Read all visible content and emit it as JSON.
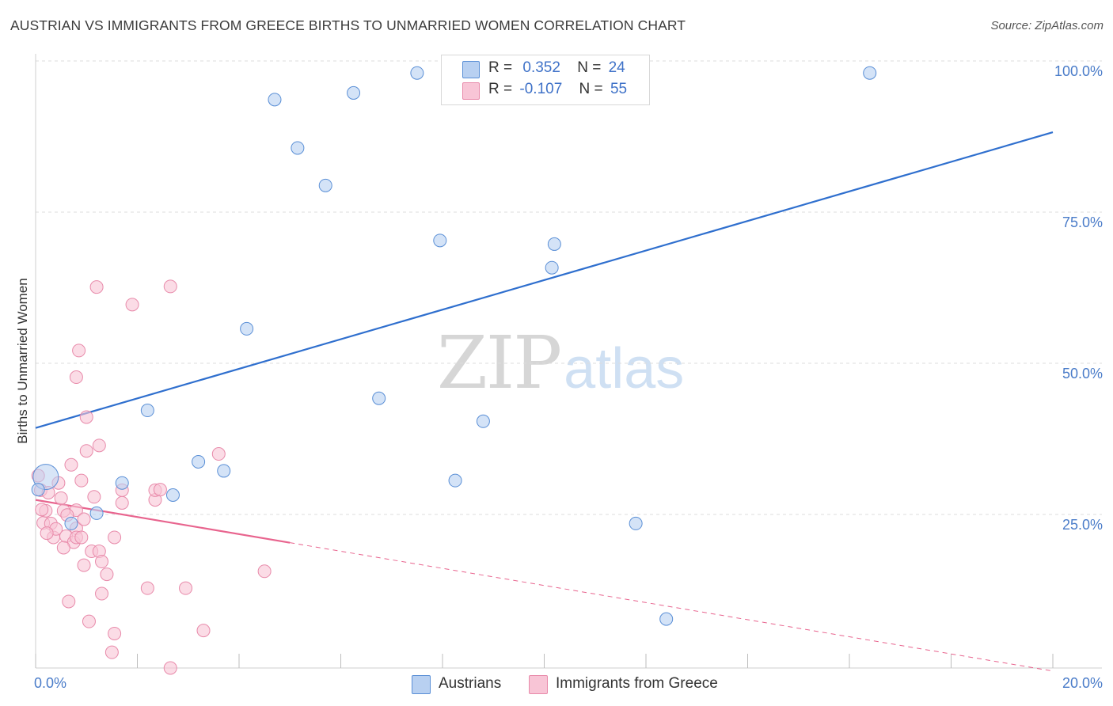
{
  "header": {
    "title": "AUSTRIAN VS IMMIGRANTS FROM GREECE BIRTHS TO UNMARRIED WOMEN CORRELATION CHART",
    "source": "Source: ZipAtlas.com"
  },
  "watermark": {
    "zip": "ZIP",
    "atlas": "atlas"
  },
  "colors": {
    "blue_fill": "#b8d0f1",
    "blue_stroke": "#5a8fd6",
    "blue_line": "#2f6fce",
    "pink_fill": "#f8c5d6",
    "pink_stroke": "#e88aaa",
    "pink_line": "#e8648e",
    "grid": "#dcdcdc",
    "tick_text": "#4a7cc9"
  },
  "legend": {
    "rows": [
      {
        "r_label": "R =",
        "r_value": "0.352",
        "n_label": "N =",
        "n_value": "24"
      },
      {
        "r_label": "R =",
        "r_value": "-0.107",
        "n_label": "N =",
        "n_value": "55"
      }
    ]
  },
  "bottom_legend": {
    "series_a": "Austrians",
    "series_b": "Immigrants from Greece"
  },
  "chart_data": {
    "type": "scatter",
    "title": "AUSTRIAN VS IMMIGRANTS FROM GREECE BIRTHS TO UNMARRIED WOMEN CORRELATION CHART",
    "xlabel": "",
    "ylabel": "Births to Unmarried Women",
    "xlim": [
      0,
      20
    ],
    "ylim": [
      0,
      100
    ],
    "x_tick_labels": [
      "0.0%",
      "20.0%"
    ],
    "y_ticks": [
      25,
      50,
      75,
      100
    ],
    "y_tick_labels": [
      "25.0%",
      "50.0%",
      "75.0%",
      "100.0%"
    ],
    "grid": true,
    "legend_position": "top-center",
    "series": [
      {
        "name": "Austrians",
        "color": "#b8d0f1",
        "r": 0.352,
        "n": 24,
        "trend": {
          "x0": 0,
          "y0": 39.7,
          "x1": 20,
          "y1": 88.6,
          "dashed_from": null
        },
        "points": [
          {
            "x": 0.2,
            "y": 31.6,
            "big": true
          },
          {
            "x": 0.7,
            "y": 23.9
          },
          {
            "x": 1.2,
            "y": 25.6
          },
          {
            "x": 1.7,
            "y": 30.6
          },
          {
            "x": 2.2,
            "y": 42.6
          },
          {
            "x": 2.7,
            "y": 28.6
          },
          {
            "x": 3.2,
            "y": 34.1
          },
          {
            "x": 3.7,
            "y": 32.6
          },
          {
            "x": 4.15,
            "y": 56.1
          },
          {
            "x": 4.7,
            "y": 94.0
          },
          {
            "x": 5.15,
            "y": 86.0
          },
          {
            "x": 5.7,
            "y": 79.8
          },
          {
            "x": 6.25,
            "y": 95.1
          },
          {
            "x": 6.75,
            "y": 44.6
          },
          {
            "x": 7.5,
            "y": 98.4
          },
          {
            "x": 7.95,
            "y": 70.7
          },
          {
            "x": 8.25,
            "y": 31.0
          },
          {
            "x": 8.8,
            "y": 40.8
          },
          {
            "x": 10.15,
            "y": 66.2
          },
          {
            "x": 10.2,
            "y": 70.1
          },
          {
            "x": 11.8,
            "y": 23.9
          },
          {
            "x": 12.4,
            "y": 8.1
          },
          {
            "x": 16.4,
            "y": 98.4
          },
          {
            "x": 0.05,
            "y": 29.5
          }
        ]
      },
      {
        "name": "Immigrants from Greece",
        "color": "#f8c5d6",
        "r": -0.107,
        "n": 55,
        "trend": {
          "x0": 0,
          "y0": 27.8,
          "x1": 20,
          "y1": -0.5,
          "dashed_from": 5.0
        },
        "points": [
          {
            "x": 0.05,
            "y": 31.8
          },
          {
            "x": 0.1,
            "y": 29.4
          },
          {
            "x": 0.15,
            "y": 24.0
          },
          {
            "x": 0.2,
            "y": 26.0
          },
          {
            "x": 0.25,
            "y": 29.0
          },
          {
            "x": 0.3,
            "y": 23.9
          },
          {
            "x": 0.35,
            "y": 21.6
          },
          {
            "x": 0.4,
            "y": 23.0
          },
          {
            "x": 0.45,
            "y": 30.6
          },
          {
            "x": 0.5,
            "y": 28.1
          },
          {
            "x": 0.55,
            "y": 26.0
          },
          {
            "x": 0.6,
            "y": 21.8
          },
          {
            "x": 0.65,
            "y": 11.0
          },
          {
            "x": 0.7,
            "y": 33.6
          },
          {
            "x": 0.75,
            "y": 20.8
          },
          {
            "x": 0.8,
            "y": 26.1
          },
          {
            "x": 0.8,
            "y": 23.1
          },
          {
            "x": 0.8,
            "y": 21.6
          },
          {
            "x": 0.8,
            "y": 48.1
          },
          {
            "x": 0.85,
            "y": 52.5
          },
          {
            "x": 0.9,
            "y": 31.0
          },
          {
            "x": 0.9,
            "y": 21.6
          },
          {
            "x": 0.95,
            "y": 24.6
          },
          {
            "x": 0.95,
            "y": 17.0
          },
          {
            "x": 1.0,
            "y": 41.5
          },
          {
            "x": 1.0,
            "y": 35.9
          },
          {
            "x": 1.05,
            "y": 7.7
          },
          {
            "x": 1.1,
            "y": 19.3
          },
          {
            "x": 1.15,
            "y": 28.3
          },
          {
            "x": 1.2,
            "y": 63.0
          },
          {
            "x": 1.25,
            "y": 36.8
          },
          {
            "x": 1.25,
            "y": 19.3
          },
          {
            "x": 1.3,
            "y": 17.6
          },
          {
            "x": 1.3,
            "y": 12.3
          },
          {
            "x": 1.4,
            "y": 15.5
          },
          {
            "x": 1.5,
            "y": 2.6
          },
          {
            "x": 1.55,
            "y": 5.7
          },
          {
            "x": 1.55,
            "y": 21.6
          },
          {
            "x": 1.7,
            "y": 29.4
          },
          {
            "x": 1.7,
            "y": 27.3
          },
          {
            "x": 1.9,
            "y": 60.1
          },
          {
            "x": 2.2,
            "y": 13.2
          },
          {
            "x": 2.35,
            "y": 27.8
          },
          {
            "x": 2.35,
            "y": 29.4
          },
          {
            "x": 2.45,
            "y": 29.5
          },
          {
            "x": 2.65,
            "y": 63.1
          },
          {
            "x": 2.65,
            "y": 0.0
          },
          {
            "x": 2.95,
            "y": 13.2
          },
          {
            "x": 3.3,
            "y": 6.2
          },
          {
            "x": 3.6,
            "y": 35.4
          },
          {
            "x": 4.5,
            "y": 16.0
          },
          {
            "x": 0.12,
            "y": 26.2
          },
          {
            "x": 0.22,
            "y": 22.3
          },
          {
            "x": 0.62,
            "y": 25.3
          },
          {
            "x": 0.55,
            "y": 19.9
          }
        ]
      }
    ]
  }
}
